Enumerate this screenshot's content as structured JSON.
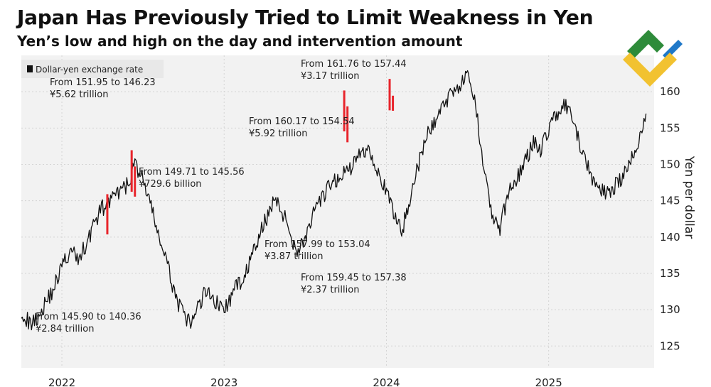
{
  "chart_data": {
    "type": "line",
    "title": "Japan Has Previously Tried to Limit Weakness in Yen",
    "subtitle": "Yen’s low and high on the day and intervention amount",
    "ylabel": "Yen per dollar",
    "xlabel": "",
    "ylim": [
      122,
      165
    ],
    "yticks": [
      125,
      130,
      135,
      140,
      145,
      150,
      155,
      160
    ],
    "x_range": [
      2021.75,
      2025.65
    ],
    "xticks": [
      {
        "label": "2022",
        "x": 2022.0
      },
      {
        "label": "2023",
        "x": 2023.0
      },
      {
        "label": "2024",
        "x": 2024.0
      },
      {
        "label": "2025",
        "x": 2025.0
      }
    ],
    "legend": [
      "Dollar-yen exchange rate"
    ],
    "legend_position": "top-left",
    "series": [
      {
        "name": "Dollar-yen exchange rate",
        "color": "#111111",
        "x": [
          2021.75,
          2021.8,
          2021.85,
          2021.9,
          2021.95,
          2022.0,
          2022.05,
          2022.1,
          2022.15,
          2022.2,
          2022.25,
          2022.3,
          2022.35,
          2022.4,
          2022.45,
          2022.5,
          2022.55,
          2022.6,
          2022.65,
          2022.7,
          2022.75,
          2022.8,
          2022.85,
          2022.9,
          2022.95,
          2023.0,
          2023.05,
          2023.1,
          2023.15,
          2023.2,
          2023.25,
          2023.3,
          2023.35,
          2023.4,
          2023.45,
          2023.5,
          2023.55,
          2023.6,
          2023.65,
          2023.7,
          2023.75,
          2023.8,
          2023.85,
          2023.9,
          2023.95,
          2024.0,
          2024.05,
          2024.1,
          2024.15,
          2024.2,
          2024.25,
          2024.3,
          2024.35,
          2024.4,
          2024.45,
          2024.5,
          2024.55,
          2024.6,
          2024.65,
          2024.7,
          2024.75,
          2024.8,
          2024.85,
          2024.9,
          2024.95,
          2025.0,
          2025.05,
          2025.1,
          2025.15,
          2025.2,
          2025.25,
          2025.3,
          2025.35,
          2025.4,
          2025.45,
          2025.5,
          2025.55,
          2025.6
        ],
        "y": [
          130,
          128,
          129,
          131,
          133,
          136,
          138,
          137,
          139,
          142,
          144,
          145,
          146,
          147,
          150,
          148,
          144,
          140,
          136,
          132,
          129,
          128,
          131,
          133,
          131,
          130,
          132,
          134,
          136,
          139,
          142,
          145,
          144,
          141,
          138,
          140,
          143,
          145,
          147,
          148,
          149,
          150,
          152,
          152,
          149,
          146,
          143,
          141,
          146,
          150,
          154,
          156,
          158,
          160,
          161,
          162,
          158,
          150,
          143,
          141,
          146,
          148,
          150,
          153,
          152,
          155,
          157,
          158,
          156,
          152,
          149,
          147,
          146,
          147,
          148,
          150,
          153,
          157
        ]
      }
    ],
    "interventions": [
      {
        "x": 2022.28,
        "from": 145.9,
        "to": 140.36,
        "label_from": "From 145.90 to 140.36",
        "amount": "¥2.84 trillion"
      },
      {
        "x": 2022.43,
        "from": 151.95,
        "to": 146.23,
        "label_from": "From 151.95 to 146.23",
        "amount": "¥5.62 trillion"
      },
      {
        "x": 2022.45,
        "from": 149.71,
        "to": 145.56,
        "label_from": "From 149.71 to 145.56",
        "amount": "¥729.6 billion"
      },
      {
        "x": 2023.74,
        "from": 160.17,
        "to": 154.54,
        "label_from": "From 160.17 to 154.54",
        "amount": "¥5.92 trillion"
      },
      {
        "x": 2023.76,
        "from": 157.99,
        "to": 153.04,
        "label_from": "From 157.99 to 153.04",
        "amount": "¥3.87 trillion"
      },
      {
        "x": 2024.02,
        "from": 161.76,
        "to": 157.44,
        "label_from": "From 161.76 to 157.44",
        "amount": "¥3.17 trillion"
      },
      {
        "x": 2024.04,
        "from": 159.45,
        "to": 157.38,
        "label_from": "From 159.45 to 157.38",
        "amount": "¥2.37 trillion"
      }
    ],
    "intervention_color": "#e8242b",
    "line_color": "#111111",
    "background": "#f2f2f2"
  },
  "logo": {
    "colors": [
      "#2e8b3a",
      "#1f78c8",
      "#f2c230"
    ],
    "icon": "brand-logo-icon"
  }
}
